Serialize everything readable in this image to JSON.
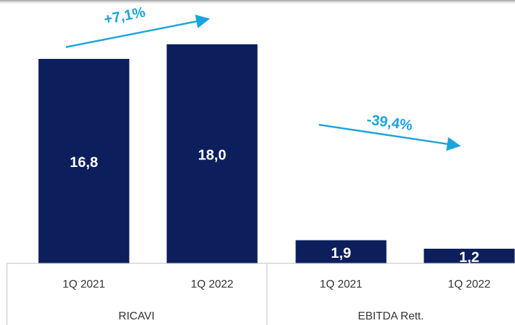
{
  "chart_data": {
    "type": "bar",
    "categories": [
      "1Q 2021",
      "1Q 2022",
      "1Q 2021",
      "1Q 2022"
    ],
    "groups": [
      "RICAVI",
      "EBITDA Rett."
    ],
    "values": [
      16.8,
      18.0,
      1.9,
      1.2
    ],
    "value_labels": [
      "16,8",
      "18,0",
      "1,9",
      "1,2"
    ],
    "color": "#0c1f5c",
    "annotations": [
      "+7,1%",
      "-39,4%"
    ]
  }
}
